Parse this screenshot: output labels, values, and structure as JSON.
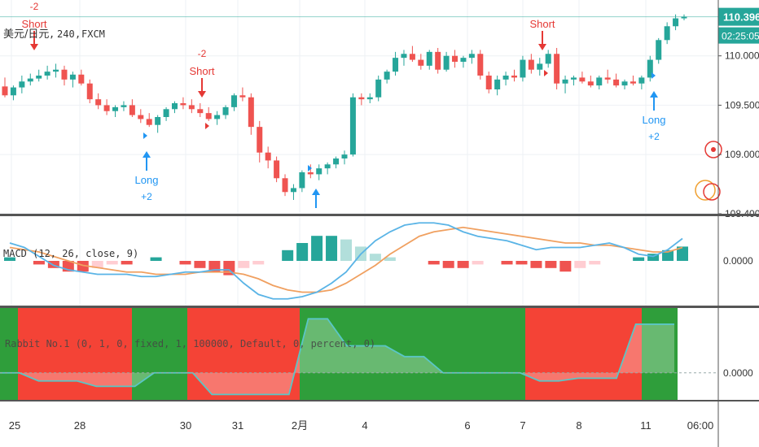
{
  "main_legend": {
    "symbol": "美元/日元",
    "interval": "240",
    "source": "FXCM"
  },
  "macd_legend": "MACD (12, 26, close, 9)",
  "strategy_legend": "Rabbit No.1 (0, 1, 0, fixed, 1, 100000, Default, 0, percent, 0)",
  "price_axis": {
    "ticks": [
      "110.000",
      "109.500",
      "109.000",
      "108.400"
    ],
    "last_price": "110.396",
    "countdown": "02:25:05",
    "last_price_color": "#26a69a"
  },
  "macd_axis": {
    "ticks": [
      "0.0000"
    ]
  },
  "strategy_axis": {
    "ticks": [
      "0.0000"
    ]
  },
  "time_axis": [
    "25",
    "28",
    "30",
    "31",
    "2月",
    "4",
    "6",
    "7",
    "8",
    "11",
    "06:00"
  ],
  "signals": [
    {
      "type": "short",
      "qty": "-2",
      "label": "Short"
    },
    {
      "type": "short",
      "qty": "-2",
      "label": "Short"
    },
    {
      "type": "long",
      "qty": "+2",
      "label": "Long"
    },
    {
      "type": "long",
      "qty": "",
      "label": ""
    },
    {
      "type": "short",
      "qty": "",
      "label": "Short"
    },
    {
      "type": "long",
      "qty": "+2",
      "label": "Long"
    }
  ],
  "colors": {
    "up": "#26a69a",
    "down": "#ef5350",
    "signal_short": "#e53935",
    "signal_long": "#2196f3",
    "macd_line": "#5ab4e6",
    "signal_line": "#f0a060",
    "hist_up_strong": "#26a69a",
    "hist_up_weak": "#b2dfdb",
    "hist_down_strong": "#ef5350",
    "hist_down_weak": "#ffcdd2",
    "bg_green": "#2f9e3b",
    "bg_red": "#f44336",
    "equity_line": "#5ac6c6"
  },
  "chart_data": [
    {
      "type": "candlestick",
      "title": "美元/日元, 240, FXCM",
      "x_labels": [
        "25",
        "28",
        "30",
        "31",
        "2月",
        "4",
        "6",
        "7",
        "8",
        "11"
      ],
      "ylim": [
        108.4,
        110.5
      ],
      "last": 110.396,
      "candles": [
        [
          109.69,
          109.78,
          109.58,
          109.6
        ],
        [
          109.6,
          109.7,
          109.55,
          109.68
        ],
        [
          109.68,
          109.8,
          109.62,
          109.74
        ],
        [
          109.74,
          109.82,
          109.7,
          109.77
        ],
        [
          109.77,
          109.86,
          109.74,
          109.8
        ],
        [
          109.8,
          109.9,
          109.76,
          109.84
        ],
        [
          109.84,
          109.92,
          109.78,
          109.86
        ],
        [
          109.86,
          109.9,
          109.7,
          109.76
        ],
        [
          109.76,
          109.84,
          109.68,
          109.81
        ],
        [
          109.81,
          109.86,
          109.7,
          109.72
        ],
        [
          109.72,
          109.76,
          109.52,
          109.56
        ],
        [
          109.56,
          109.62,
          109.46,
          109.5
        ],
        [
          109.5,
          109.56,
          109.4,
          109.44
        ],
        [
          109.44,
          109.5,
          109.38,
          109.48
        ],
        [
          109.48,
          109.54,
          109.44,
          109.5
        ],
        [
          109.5,
          109.56,
          109.38,
          109.4
        ],
        [
          109.4,
          109.46,
          109.32,
          109.36
        ],
        [
          109.36,
          109.42,
          109.28,
          109.3
        ],
        [
          109.3,
          109.4,
          109.22,
          109.38
        ],
        [
          109.38,
          109.48,
          109.34,
          109.46
        ],
        [
          109.46,
          109.54,
          109.42,
          109.52
        ],
        [
          109.52,
          109.58,
          109.46,
          109.5
        ],
        [
          109.5,
          109.56,
          109.42,
          109.46
        ],
        [
          109.46,
          109.52,
          109.38,
          109.42
        ],
        [
          109.42,
          109.48,
          109.34,
          109.36
        ],
        [
          109.36,
          109.44,
          109.3,
          109.4
        ],
        [
          109.4,
          109.5,
          109.36,
          109.48
        ],
        [
          109.48,
          109.62,
          109.44,
          109.6
        ],
        [
          109.6,
          109.68,
          109.54,
          109.58
        ],
        [
          109.58,
          109.62,
          109.2,
          109.28
        ],
        [
          109.28,
          109.34,
          108.92,
          109.02
        ],
        [
          109.02,
          109.08,
          108.86,
          108.94
        ],
        [
          108.94,
          108.98,
          108.72,
          108.76
        ],
        [
          108.76,
          108.8,
          108.58,
          108.62
        ],
        [
          108.62,
          108.7,
          108.54,
          108.66
        ],
        [
          108.66,
          108.84,
          108.62,
          108.82
        ],
        [
          108.82,
          108.9,
          108.76,
          108.8
        ],
        [
          108.8,
          108.9,
          108.74,
          108.86
        ],
        [
          108.86,
          108.92,
          108.8,
          108.9
        ],
        [
          108.9,
          108.98,
          108.86,
          108.96
        ],
        [
          108.96,
          109.04,
          108.9,
          109.0
        ],
        [
          109.0,
          109.62,
          108.98,
          109.58
        ],
        [
          109.58,
          109.62,
          109.5,
          109.56
        ],
        [
          109.56,
          109.62,
          109.52,
          109.58
        ],
        [
          109.58,
          109.8,
          109.54,
          109.76
        ],
        [
          109.76,
          109.86,
          109.72,
          109.84
        ],
        [
          109.84,
          110.04,
          109.8,
          109.98
        ],
        [
          109.98,
          110.06,
          109.9,
          110.02
        ],
        [
          110.02,
          110.1,
          109.94,
          109.96
        ],
        [
          109.96,
          110.02,
          109.86,
          109.9
        ],
        [
          109.9,
          110.06,
          109.86,
          110.04
        ],
        [
          110.04,
          110.08,
          109.82,
          109.86
        ],
        [
          109.86,
          110.04,
          109.84,
          110.0
        ],
        [
          110.0,
          110.06,
          109.88,
          109.94
        ],
        [
          109.94,
          110.0,
          109.88,
          109.98
        ],
        [
          109.98,
          110.06,
          109.92,
          110.02
        ],
        [
          110.02,
          110.06,
          109.76,
          109.8
        ],
        [
          109.8,
          109.84,
          109.62,
          109.66
        ],
        [
          109.66,
          109.8,
          109.6,
          109.76
        ],
        [
          109.76,
          109.84,
          109.7,
          109.8
        ],
        [
          109.8,
          109.86,
          109.74,
          109.78
        ],
        [
          109.78,
          110.0,
          109.74,
          109.96
        ],
        [
          109.96,
          110.02,
          109.82,
          109.86
        ],
        [
          109.86,
          109.98,
          109.8,
          109.92
        ],
        [
          109.92,
          110.06,
          109.88,
          110.02
        ],
        [
          110.02,
          110.08,
          109.66,
          109.72
        ],
        [
          109.72,
          109.8,
          109.62,
          109.76
        ],
        [
          109.76,
          109.8,
          109.7,
          109.78
        ],
        [
          109.78,
          109.84,
          109.72,
          109.74
        ],
        [
          109.74,
          109.8,
          109.68,
          109.7
        ],
        [
          109.7,
          109.8,
          109.66,
          109.78
        ],
        [
          109.78,
          109.86,
          109.72,
          109.76
        ],
        [
          109.76,
          109.82,
          109.68,
          109.7
        ],
        [
          109.7,
          109.76,
          109.66,
          109.74
        ],
        [
          109.74,
          109.8,
          109.7,
          109.72
        ],
        [
          109.72,
          109.8,
          109.66,
          109.78
        ],
        [
          109.78,
          110.0,
          109.74,
          109.96
        ],
        [
          109.96,
          110.18,
          109.92,
          110.16
        ],
        [
          110.16,
          110.34,
          110.12,
          110.3
        ],
        [
          110.3,
          110.42,
          110.26,
          110.38
        ],
        [
          110.38,
          110.42,
          110.36,
          110.396
        ]
      ]
    },
    {
      "type": "line",
      "title": "MACD (12, 26, close, 9)",
      "ylim": [
        -0.2,
        0.2
      ],
      "series": [
        {
          "name": "MACD",
          "values": [
            0.08,
            0.06,
            0.02,
            -0.02,
            -0.04,
            -0.05,
            -0.06,
            -0.06,
            -0.06,
            -0.07,
            -0.07,
            -0.06,
            -0.05,
            -0.05,
            -0.04,
            -0.04,
            -0.1,
            -0.15,
            -0.17,
            -0.17,
            -0.16,
            -0.14,
            -0.1,
            -0.05,
            0.03,
            0.09,
            0.13,
            0.16,
            0.17,
            0.17,
            0.16,
            0.13,
            0.11,
            0.1,
            0.09,
            0.07,
            0.05,
            0.06,
            0.06,
            0.06,
            0.07,
            0.08,
            0.06,
            0.03,
            0.02,
            0.05,
            0.1
          ]
        },
        {
          "name": "Signal",
          "values": [
            0.06,
            0.05,
            0.04,
            0.02,
            0.0,
            -0.02,
            -0.03,
            -0.04,
            -0.05,
            -0.05,
            -0.06,
            -0.06,
            -0.06,
            -0.05,
            -0.05,
            -0.05,
            -0.06,
            -0.08,
            -0.11,
            -0.13,
            -0.14,
            -0.14,
            -0.13,
            -0.1,
            -0.06,
            -0.02,
            0.03,
            0.07,
            0.11,
            0.13,
            0.14,
            0.15,
            0.14,
            0.13,
            0.12,
            0.11,
            0.1,
            0.09,
            0.08,
            0.08,
            0.07,
            0.07,
            0.06,
            0.05,
            0.04,
            0.04,
            0.06
          ]
        },
        {
          "name": "Histogram",
          "values": [
            0.01,
            0.0,
            -0.01,
            -0.02,
            -0.03,
            -0.03,
            -0.02,
            -0.01,
            -0.01,
            0.0,
            0.01,
            0.0,
            -0.01,
            -0.02,
            -0.03,
            -0.04,
            -0.02,
            -0.01,
            0.0,
            0.03,
            0.05,
            0.07,
            0.07,
            0.06,
            0.04,
            0.02,
            0.01,
            0.0,
            0.0,
            -0.01,
            -0.02,
            -0.02,
            -0.01,
            0.0,
            -0.01,
            -0.01,
            -0.02,
            -0.02,
            -0.03,
            -0.02,
            -0.01,
            0.0,
            0.0,
            0.01,
            0.02,
            0.03,
            0.04
          ]
        }
      ]
    },
    {
      "type": "area",
      "title": "Rabbit No.1 (0, 1, 0, fixed, 1, 100000, Default, 0, percent, 0)",
      "ylim": [
        -0.5,
        1.2
      ],
      "regime": [
        "long",
        "short",
        "long",
        "short",
        "long",
        "short",
        "long"
      ],
      "series": [
        {
          "name": "Equity",
          "values": [
            0,
            0,
            -0.15,
            -0.15,
            -0.15,
            -0.25,
            -0.25,
            -0.25,
            0,
            0,
            0,
            -0.4,
            -0.4,
            -0.4,
            -0.4,
            -0.4,
            1.0,
            1.0,
            0.5,
            0.5,
            0.5,
            0.3,
            0.3,
            0.0,
            0.0,
            0.0,
            0.0,
            0.0,
            -0.15,
            -0.15,
            -0.1,
            -0.1,
            -0.1,
            0.9,
            0.9,
            0.9
          ]
        }
      ]
    }
  ]
}
